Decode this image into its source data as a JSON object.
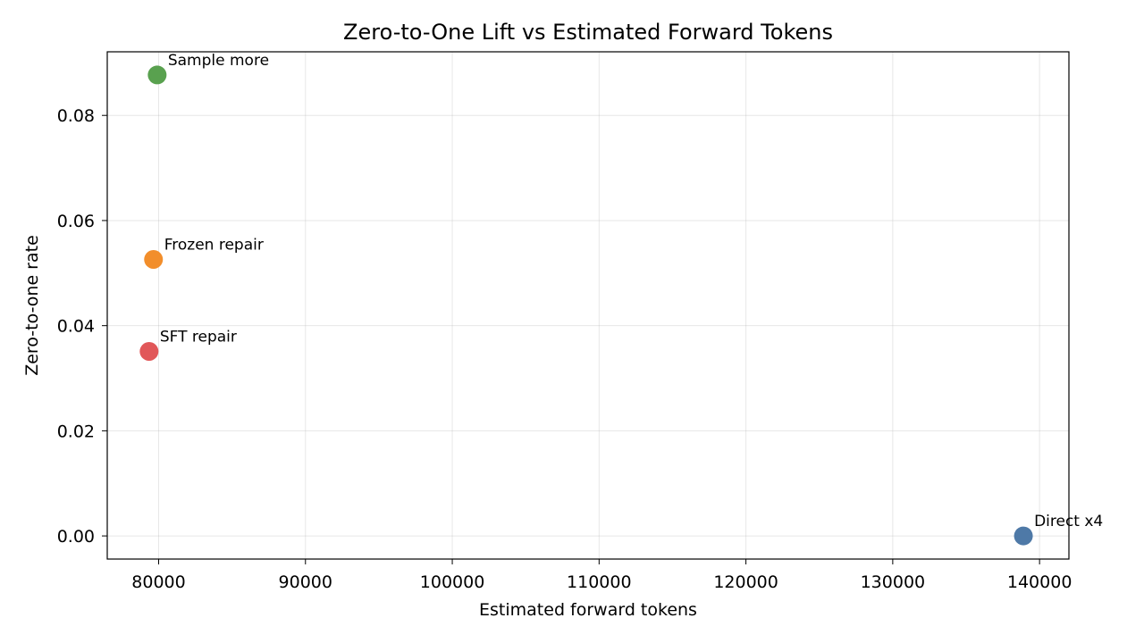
{
  "chart_data": {
    "type": "scatter",
    "title": "Zero-to-One Lift vs Estimated Forward Tokens",
    "xlabel": "Estimated forward tokens",
    "ylabel": "Zero-to-one rate",
    "xlim": [
      76500,
      142000
    ],
    "ylim": [
      -0.0044,
      0.0921
    ],
    "xticks": [
      80000,
      90000,
      100000,
      110000,
      120000,
      130000,
      140000
    ],
    "xtick_labels": [
      "80000",
      "90000",
      "100000",
      "110000",
      "120000",
      "130000",
      "140000"
    ],
    "yticks": [
      0.0,
      0.02,
      0.04,
      0.06,
      0.08
    ],
    "ytick_labels": [
      "0.00",
      "0.02",
      "0.04",
      "0.06",
      "0.08"
    ],
    "grid": true,
    "points": [
      {
        "label": "Direct x4",
        "x": 138900,
        "y": 0.0,
        "color": "#4e79a7"
      },
      {
        "label": "Sample more",
        "x": 79900,
        "y": 0.0877,
        "color": "#59a14f"
      },
      {
        "label": "Frozen repair",
        "x": 79650,
        "y": 0.0526,
        "color": "#f28e2b"
      },
      {
        "label": "SFT repair",
        "x": 79350,
        "y": 0.0351,
        "color": "#e15759"
      }
    ]
  }
}
